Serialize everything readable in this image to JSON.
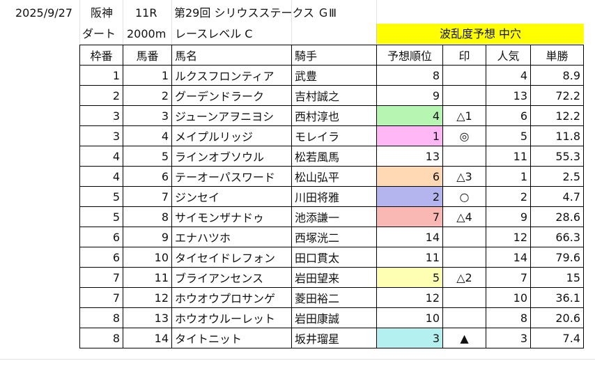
{
  "sheet": {
    "date": "2025/9/27",
    "venue": "阪神",
    "race_no": "11R",
    "race_name": "第29回 シリウスステークス ＧⅢ",
    "surface": "ダート",
    "distance": "2000m",
    "race_level": "レースレベル C",
    "volatility": "波乱度予想 中穴"
  },
  "table": {
    "headers": [
      "枠番",
      "馬番",
      "馬名",
      "騎手",
      "予想順位",
      "印",
      "人気",
      "単勝"
    ],
    "rows": [
      {
        "waku": "1",
        "uma": "1",
        "name": "ルクスフロンティア",
        "jockey": "武豊",
        "rank": "8",
        "mark": "",
        "pop": "4",
        "odds": "8.9",
        "hl": ""
      },
      {
        "waku": "2",
        "uma": "2",
        "name": "グーデンドラーク",
        "jockey": "吉村誠之",
        "rank": "9",
        "mark": "",
        "pop": "13",
        "odds": "72.2",
        "hl": ""
      },
      {
        "waku": "3",
        "uma": "3",
        "name": "ジューンアヲニヨシ",
        "jockey": "西村淳也",
        "rank": "4",
        "mark": "△1",
        "pop": "6",
        "odds": "12.2",
        "hl": "#b7f5b2"
      },
      {
        "waku": "3",
        "uma": "4",
        "name": "メイプルリッジ",
        "jockey": "モレイラ",
        "rank": "1",
        "mark": "◎",
        "pop": "5",
        "odds": "11.8",
        "hl": "#ffb8f5"
      },
      {
        "waku": "4",
        "uma": "5",
        "name": "ラインオブソウル",
        "jockey": "松若風馬",
        "rank": "13",
        "mark": "",
        "pop": "11",
        "odds": "55.3",
        "hl": ""
      },
      {
        "waku": "4",
        "uma": "6",
        "name": "テーオーパスワード",
        "jockey": "松山弘平",
        "rank": "6",
        "mark": "△3",
        "pop": "1",
        "odds": "2.5",
        "hl": "#ffd8b4"
      },
      {
        "waku": "5",
        "uma": "7",
        "name": "ジンセイ",
        "jockey": "川田将雅",
        "rank": "2",
        "mark": "○",
        "pop": "2",
        "odds": "4.7",
        "hl": "#b4b4ee"
      },
      {
        "waku": "5",
        "uma": "8",
        "name": "サイモンザナドゥ",
        "jockey": "池添謙一",
        "rank": "7",
        "mark": "△4",
        "pop": "9",
        "odds": "28.6",
        "hl": "#f9b8b4"
      },
      {
        "waku": "6",
        "uma": "9",
        "name": "エナハツホ",
        "jockey": "西塚洸二",
        "rank": "14",
        "mark": "",
        "pop": "12",
        "odds": "66.3",
        "hl": ""
      },
      {
        "waku": "6",
        "uma": "10",
        "name": "タイセイドレフォン",
        "jockey": "田口貫太",
        "rank": "11",
        "mark": "",
        "pop": "14",
        "odds": "79.6",
        "hl": ""
      },
      {
        "waku": "7",
        "uma": "11",
        "name": "ブライアンセンス",
        "jockey": "岩田望来",
        "rank": "5",
        "mark": "△2",
        "pop": "7",
        "odds": "15",
        "hl": "#ffffb4"
      },
      {
        "waku": "7",
        "uma": "12",
        "name": "ホウオウプロサンゲ",
        "jockey": "菱田裕二",
        "rank": "12",
        "mark": "",
        "pop": "10",
        "odds": "36.1",
        "hl": ""
      },
      {
        "waku": "8",
        "uma": "13",
        "name": "ホウオウルーレット",
        "jockey": "岩田康誠",
        "rank": "10",
        "mark": "",
        "pop": "8",
        "odds": "20.6",
        "hl": ""
      },
      {
        "waku": "8",
        "uma": "14",
        "name": "タイトニット",
        "jockey": "坂井瑠星",
        "rank": "3",
        "mark": "▲",
        "pop": "3",
        "odds": "7.4",
        "hl": "#b4f0f0"
      }
    ]
  }
}
